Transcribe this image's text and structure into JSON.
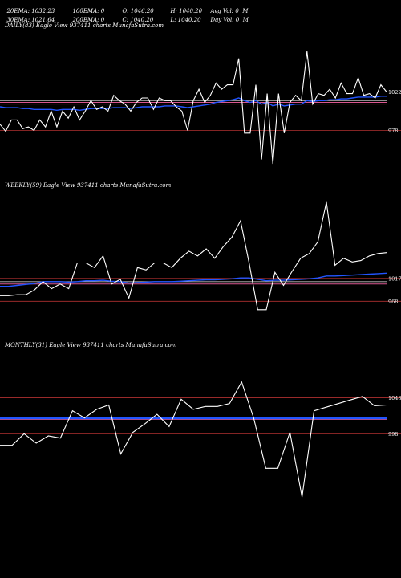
{
  "header": {
    "row1": [
      "20EMA: 1032.23",
      "100EMA: 0",
      "O: 1046.20",
      "H: 1040.20",
      "Avg Vol: 0  M"
    ],
    "row2": [
      "30EMA: 1021.64",
      "200EMA: 0",
      "C: 1040.20",
      "L: 1040.20",
      "Day Vol: 0  M"
    ]
  },
  "colors": {
    "price": "#ffffff",
    "ema_blue": "#2255ff",
    "level_red": "#b03030",
    "grid_white": "#dddddd",
    "pink": "#ff66aa"
  },
  "chart_data": [
    {
      "type": "line",
      "label": "DAILY(83) Eagle  View  937411 charts MunafaSutra.com",
      "ylim": [
        930,
        1090
      ],
      "levels": [
        {
          "value": 1022,
          "label": "1022"
        },
        {
          "value": 978,
          "label": "978"
        }
      ],
      "hlines": [
        1012,
        1010,
        1008
      ],
      "price": [
        985,
        977,
        990,
        990,
        980,
        982,
        978,
        990,
        982,
        1000,
        982,
        1000,
        992,
        1005,
        990,
        1000,
        1012,
        1002,
        1005,
        1000,
        1018,
        1012,
        1008,
        1000,
        1010,
        1015,
        1015,
        1002,
        1015,
        1012,
        1012,
        1005,
        1000,
        978,
        1012,
        1025,
        1010,
        1018,
        1032,
        1025,
        1030,
        1030,
        1060,
        975,
        975,
        1030,
        945,
        1020,
        940,
        1020,
        975,
        1010,
        1018,
        1012,
        1068,
        1008,
        1020,
        1018,
        1025,
        1015,
        1032,
        1020,
        1020,
        1038,
        1018,
        1020,
        1015,
        1030,
        1022
      ],
      "ema": [
        1005,
        1004,
        1004,
        1004,
        1003,
        1003,
        1002,
        1002,
        1002,
        1002,
        1001,
        1002,
        1002,
        1002,
        1001,
        1002,
        1003,
        1003,
        1003,
        1003,
        1004,
        1004,
        1004,
        1003,
        1004,
        1005,
        1005,
        1005,
        1005,
        1006,
        1006,
        1006,
        1005,
        1004,
        1005,
        1006,
        1007,
        1008,
        1010,
        1011,
        1012,
        1013,
        1015,
        1012,
        1010,
        1012,
        1008,
        1010,
        1006,
        1008,
        1006,
        1007,
        1008,
        1008,
        1012,
        1011,
        1012,
        1012,
        1013,
        1013,
        1014,
        1014,
        1015,
        1016,
        1016,
        1016,
        1016,
        1017,
        1017
      ]
    },
    {
      "type": "line",
      "label": "WEEKLY(59) Eagle  View  937411 charts MunafaSutra.com",
      "ylim": [
        900,
        1200
      ],
      "levels": [
        {
          "value": 1017,
          "label": "1017"
        },
        {
          "value": 968,
          "label": "968"
        }
      ],
      "hlines": [
        1010,
        1005
      ],
      "price": [
        980,
        980,
        982,
        982,
        992,
        1010,
        995,
        1005,
        995,
        1050,
        1050,
        1040,
        1065,
        1005,
        1015,
        975,
        1040,
        1035,
        1050,
        1050,
        1040,
        1060,
        1075,
        1065,
        1080,
        1060,
        1085,
        1105,
        1140,
        1050,
        950,
        950,
        1030,
        1002,
        1032,
        1060,
        1070,
        1095,
        1180,
        1045,
        1060,
        1052,
        1055,
        1065,
        1070,
        1072
      ],
      "ema": [
        1000,
        1000,
        1002,
        1004,
        1006,
        1010,
        1010,
        1010,
        1009,
        1010,
        1012,
        1012,
        1013,
        1011,
        1010,
        1007,
        1008,
        1009,
        1010,
        1010,
        1010,
        1011,
        1012,
        1013,
        1014,
        1014,
        1015,
        1016,
        1018,
        1018,
        1015,
        1012,
        1013,
        1013,
        1014,
        1015,
        1016,
        1018,
        1022,
        1022,
        1023,
        1024,
        1025,
        1026,
        1027,
        1028
      ]
    },
    {
      "type": "line",
      "label": "MONTHLY(31) Eagle  View  937411 charts MunafaSutra.com",
      "ylim": [
        870,
        1110
      ],
      "levels": [
        {
          "value": 1048,
          "label": "1048"
        },
        {
          "value": 998,
          "label": "998"
        }
      ],
      "hlines": [
        1020,
        1018
      ],
      "price": [
        982,
        982,
        998,
        985,
        995,
        992,
        1030,
        1020,
        1032,
        1038,
        970,
        1000,
        1012,
        1025,
        1008,
        1046,
        1032,
        1036,
        1036,
        1040,
        1070,
        1020,
        950,
        950,
        1000,
        910,
        1030,
        1035,
        1040,
        1045,
        1050,
        1037,
        1038
      ],
      "ema": [
        1020,
        1020,
        1020,
        1020,
        1020,
        1020,
        1020,
        1020,
        1020,
        1020,
        1020,
        1020,
        1020,
        1020,
        1020,
        1020,
        1020,
        1020,
        1020,
        1020,
        1020,
        1020,
        1020,
        1020,
        1020,
        1020,
        1020,
        1020,
        1020,
        1020,
        1020,
        1020,
        1020
      ]
    }
  ]
}
